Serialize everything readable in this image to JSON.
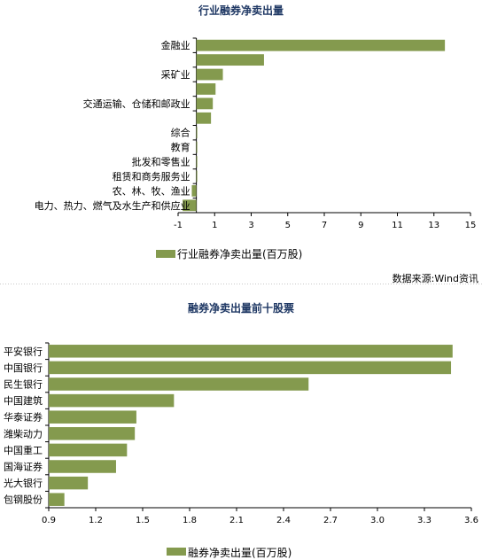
{
  "source_note": "数据来源:Wind资讯",
  "chart_data": [
    {
      "type": "bar",
      "orientation": "horizontal",
      "title": "行业融券净卖出量",
      "categories": [
        "金融业",
        "",
        "采矿业",
        "",
        "交通运输、仓储和邮政业",
        "",
        "综合",
        "教育",
        "批发和零售业",
        "租赁和商务服务业",
        "农、林、牧、渔业",
        "电力、热力、燃气及水生产和供应业"
      ],
      "series": [
        {
          "name": "行业融券净卖出量(百万股)",
          "values": [
            13.6,
            3.7,
            1.45,
            1.05,
            0.9,
            0.8,
            0.0,
            0.0,
            0.0,
            0.0,
            -0.25,
            -0.75
          ]
        }
      ],
      "xlim": [
        -1,
        15
      ],
      "xticks": [
        -1,
        1,
        3,
        5,
        7,
        9,
        11,
        13,
        15
      ],
      "bar_color": "#849a4e",
      "legend_position": "bottom"
    },
    {
      "type": "bar",
      "orientation": "horizontal",
      "title": "融券净卖出量前十股票",
      "categories": [
        "平安银行",
        "中国银行",
        "民生银行",
        "中国建筑",
        "华泰证券",
        "潍柴动力",
        "中国重工",
        "国海证券",
        "光大银行",
        "包钢股份"
      ],
      "series": [
        {
          "name": "融券净卖出量(百万股)",
          "values": [
            3.48,
            3.47,
            2.56,
            1.7,
            1.46,
            1.45,
            1.4,
            1.33,
            1.15,
            1.0
          ]
        }
      ],
      "xlim": [
        0.9,
        3.6
      ],
      "xticks": [
        "0.9",
        "1.2",
        "1.5",
        "1.8",
        "2.1",
        "2.4",
        "2.7",
        "3.0",
        "3.3",
        "3.6"
      ],
      "bar_color": "#849a4e",
      "legend_position": "bottom"
    }
  ]
}
